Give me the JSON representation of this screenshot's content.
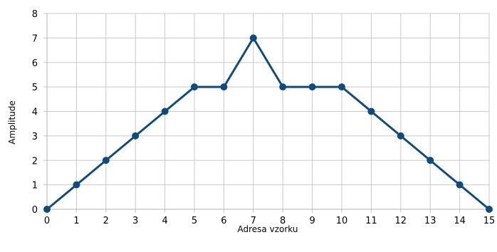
{
  "chart_data": {
    "type": "line",
    "xlabel": "Adresa vzorku",
    "ylabel": "Amplitude",
    "xlim": [
      0,
      15
    ],
    "ylim": [
      0,
      8
    ],
    "x_ticks": [
      0,
      1,
      2,
      3,
      4,
      5,
      6,
      7,
      8,
      9,
      10,
      11,
      12,
      13,
      14,
      15
    ],
    "y_ticks": [
      0,
      1,
      2,
      3,
      4,
      5,
      6,
      7,
      8
    ],
    "grid": true,
    "legend": "none",
    "series": [
      {
        "color": "#0e4c80",
        "x": [
          0,
          1,
          2,
          3,
          4,
          5,
          6,
          7,
          8,
          9,
          10,
          11,
          12,
          13,
          14,
          15
        ],
        "y": [
          0,
          1,
          2,
          3,
          4,
          5,
          5,
          7,
          5,
          5,
          5,
          4,
          3,
          2,
          1,
          0
        ]
      }
    ]
  }
}
